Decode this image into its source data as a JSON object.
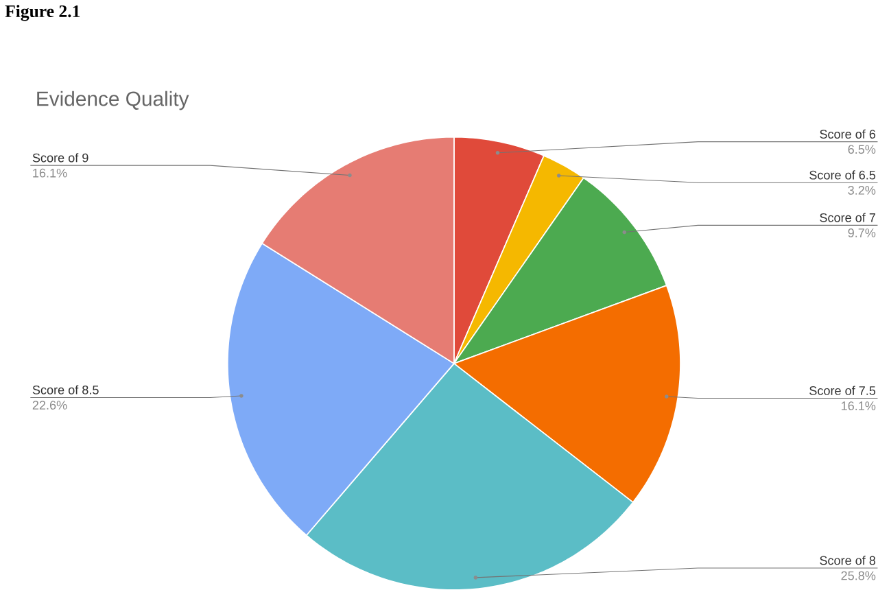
{
  "chart_data": {
    "type": "pie",
    "title": "Evidence Quality",
    "annotations": [
      "Figure 2.1"
    ],
    "categories": [
      "Score of 6",
      "Score of 6.5",
      "Score of 7",
      "Score of 7.5",
      "Score of 8",
      "Score of 8.5",
      "Score of 9"
    ],
    "values": [
      6.5,
      3.2,
      9.7,
      16.1,
      25.8,
      22.6,
      16.1
    ],
    "value_labels": [
      "6.5%",
      "3.2%",
      "9.7%",
      "16.1%",
      "25.8%",
      "22.6%",
      "16.1%"
    ],
    "colors": [
      "#e04a3a",
      "#f5b800",
      "#4caa50",
      "#f46d00",
      "#5bbdc6",
      "#7eaaf7",
      "#e67c73"
    ]
  }
}
